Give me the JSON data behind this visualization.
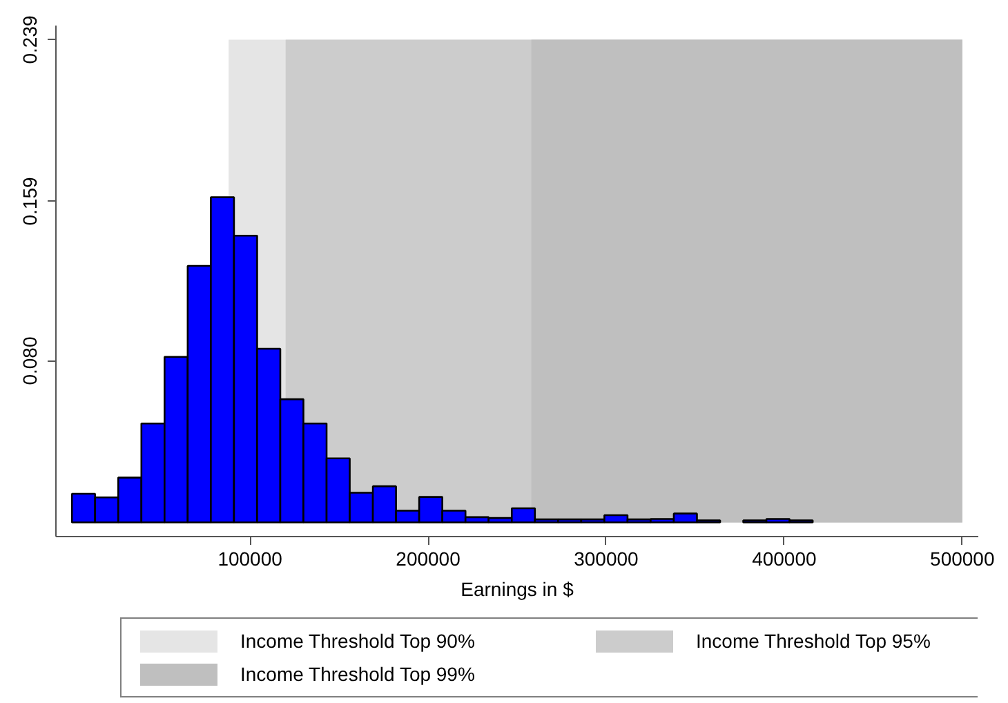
{
  "chart_data": {
    "type": "histogram",
    "xlabel": "Earnings in $",
    "bins": [
      0,
      13000,
      26000,
      39000,
      52000,
      65000,
      78000,
      91000,
      104000,
      117000,
      130000,
      143000,
      156000,
      169000,
      182000,
      195000,
      208000,
      221000,
      234000,
      247000,
      260000,
      273000,
      286000,
      299000,
      312000,
      325000,
      338000,
      351000,
      364000,
      377000,
      390000,
      403000,
      416000
    ],
    "values": [
      0.0142,
      0.0124,
      0.0222,
      0.049,
      0.082,
      0.127,
      0.161,
      0.142,
      0.086,
      0.061,
      0.049,
      0.0317,
      0.0147,
      0.0179,
      0.0058,
      0.0126,
      0.0058,
      0.0026,
      0.0022,
      0.007,
      0.0015,
      0.0015,
      0.0015,
      0.0036,
      0.0015,
      0.0017,
      0.0044,
      0.001,
      0,
      0.001,
      0.0017,
      0.001
    ],
    "color": "#0000ff",
    "xlim": [
      -9000,
      509000
    ],
    "ylim": [
      -0.007,
      0.246
    ],
    "xticks": [
      100000,
      200000,
      300000,
      400000,
      500000
    ],
    "yticks": [
      {
        "value": 0.08,
        "label": "0.080"
      },
      0.159,
      0.239
    ],
    "bands": [
      {
        "axis": "x",
        "from": 88000,
        "to": 500000,
        "label": "Income Threshold Top 90%",
        "color": "#e5e5e5"
      },
      {
        "axis": "x",
        "from": 120000,
        "to": 500000,
        "label": "Income Threshold Top 95%",
        "color": "#cccccc"
      },
      {
        "axis": "x",
        "from": 258000,
        "to": 500000,
        "label": "Income Threshold Top 99%",
        "color": "#bfbfbf"
      }
    ],
    "legend": "bottom"
  }
}
